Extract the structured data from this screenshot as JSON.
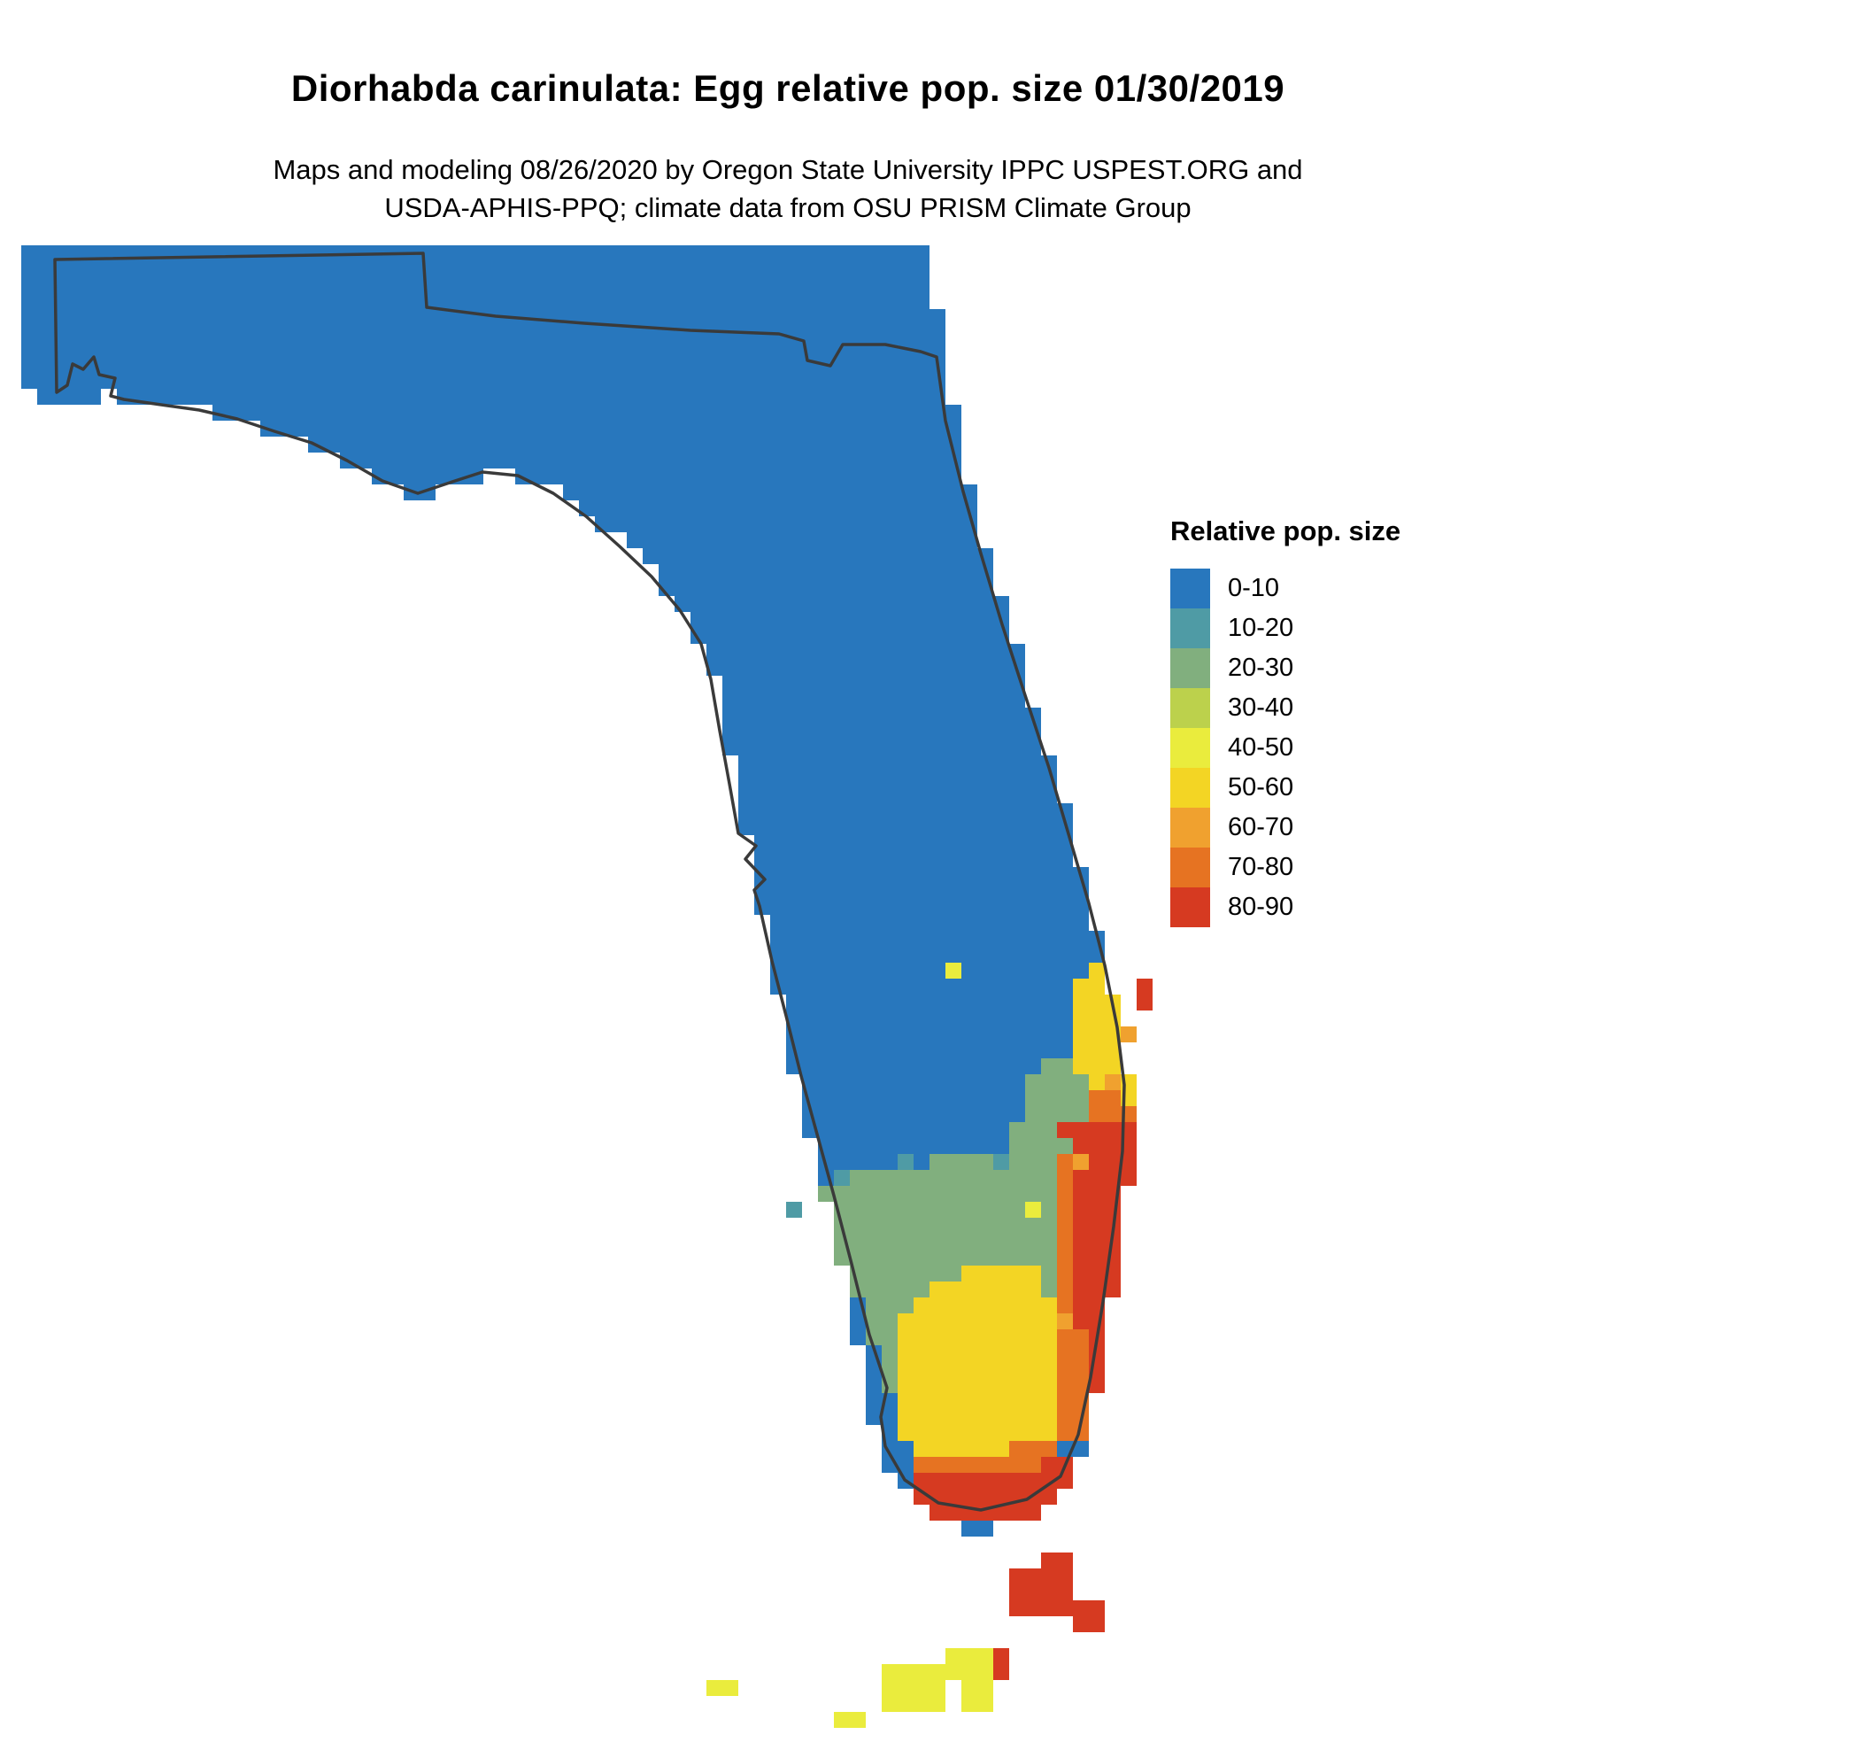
{
  "header": {
    "title": "Diorhabda carinulata: Egg relative pop. size 01/30/2019",
    "subtitle_line1": "Maps and modeling 08/26/2020 by Oregon State University IPPC USPEST.ORG and",
    "subtitle_line2": "USDA-APHIS-PPQ; climate data from OSU PRISM Climate Group"
  },
  "legend": {
    "title": "Relative pop. size",
    "items": [
      {
        "label": "0-10",
        "color": "#2877BD"
      },
      {
        "label": "10-20",
        "color": "#4F9BA5"
      },
      {
        "label": "20-30",
        "color": "#81AF7E"
      },
      {
        "label": "30-40",
        "color": "#BCD14C"
      },
      {
        "label": "40-50",
        "color": "#EAEC3D"
      },
      {
        "label": "50-60",
        "color": "#F3D524"
      },
      {
        "label": "60-70",
        "color": "#F0A12F"
      },
      {
        "label": "70-80",
        "color": "#E67322"
      },
      {
        "label": "80-90",
        "color": "#D63A21"
      }
    ]
  },
  "map": {
    "region": "Florida",
    "outline_color": "#3A3A3A",
    "background_color": "#FFFFFF"
  },
  "chart_data": {
    "type": "heatmap",
    "title": "Diorhabda carinulata: Egg relative pop. size 01/30/2019",
    "legend_title": "Relative pop. size",
    "classes": [
      "0-10",
      "10-20",
      "20-30",
      "30-40",
      "40-50",
      "50-60",
      "60-70",
      "70-80",
      "80-90"
    ],
    "palette": [
      "#2877BD",
      "#4F9BA5",
      "#81AF7E",
      "#BCD14C",
      "#EAEC3D",
      "#F3D524",
      "#F0A12F",
      "#E67322",
      "#D63A21"
    ],
    "regions": [
      {
        "area": "panhandle and most of peninsula",
        "class": "0-10"
      },
      {
        "area": "south-central inland band (southwest of Lake Okeechobee)",
        "class": "20-30"
      },
      {
        "area": "lower east coast strip (Palm Beach area)",
        "class": "50-60"
      },
      {
        "area": "southern interior (Everglades)",
        "class": "50-60"
      },
      {
        "area": "southeast block (Broward / Miami-Dade) and far south coast",
        "class": "80-90"
      },
      {
        "area": "transition cells around red zone",
        "class": "60-70 / 70-80"
      },
      {
        "area": "upper Florida Keys",
        "class": "80-90"
      },
      {
        "area": "lower Florida Keys",
        "class": "40-50"
      }
    ]
  }
}
